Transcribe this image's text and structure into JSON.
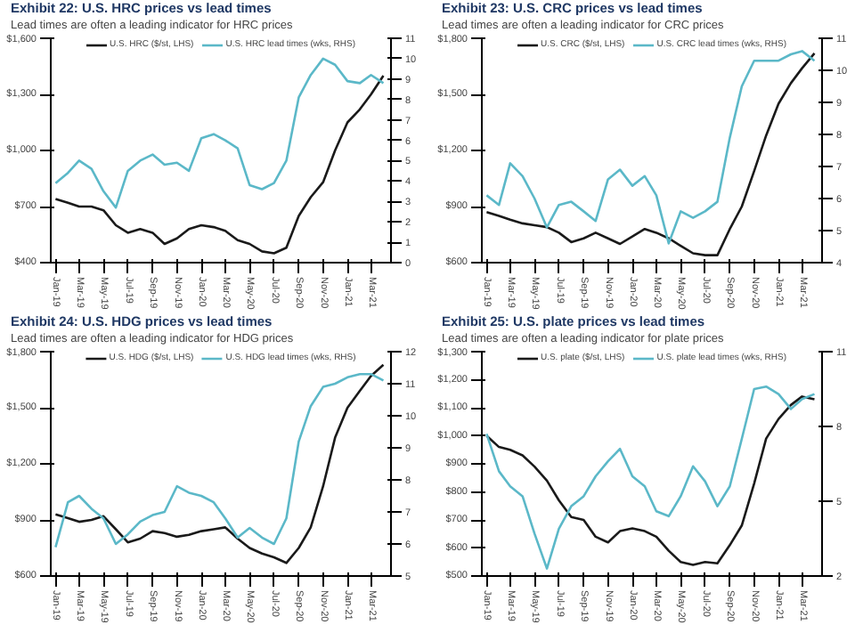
{
  "chart_data": [
    {
      "type": "line",
      "title": "Exhibit 22: U.S. HRC prices vs lead times",
      "subtitle": "Lead times are often a leading indicator for HRC prices",
      "legend": "top",
      "marker": "none",
      "line_style": "solid",
      "grid": false,
      "x": [
        "2019-01",
        "2019-02",
        "2019-03",
        "2019-04",
        "2019-05",
        "2019-06",
        "2019-07",
        "2019-08",
        "2019-09",
        "2019-10",
        "2019-11",
        "2019-12",
        "2020-01",
        "2020-02",
        "2020-03",
        "2020-04",
        "2020-05",
        "2020-06",
        "2020-07",
        "2020-08",
        "2020-09",
        "2020-10",
        "2020-11",
        "2020-12",
        "2021-01",
        "2021-02",
        "2021-03",
        "2021-04"
      ],
      "xlim": [
        "2018-12-20",
        "2021-04-20"
      ],
      "xticks": [
        {
          "value": "2019-01",
          "label": "Jan-19"
        },
        {
          "value": "2019-03",
          "label": "Mar-19"
        },
        {
          "value": "2019-05",
          "label": "May-19"
        },
        {
          "value": "2019-07",
          "label": "Jul-19"
        },
        {
          "value": "2019-09",
          "label": "Sep-19"
        },
        {
          "value": "2019-11",
          "label": "Nov-19"
        },
        {
          "value": "2020-01",
          "label": "Jan-20"
        },
        {
          "value": "2020-03",
          "label": "Mar-20"
        },
        {
          "value": "2020-05",
          "label": "May-20"
        },
        {
          "value": "2020-07",
          "label": "Jul-20"
        },
        {
          "value": "2020-09",
          "label": "Sep-20"
        },
        {
          "value": "2020-11",
          "label": "Nov-20"
        },
        {
          "value": "2021-01",
          "label": "Jan-21"
        },
        {
          "value": "2021-03",
          "label": "Mar-21"
        }
      ],
      "ylim": [
        400,
        1600
      ],
      "yticks": [
        {
          "value": 400,
          "label": "$400"
        },
        {
          "value": 700,
          "label": "$700"
        },
        {
          "value": 1000,
          "label": "$1,000"
        },
        {
          "value": 1300,
          "label": "$1,300"
        },
        {
          "value": 1600,
          "label": "$1,600"
        }
      ],
      "y2lim": [
        0,
        11
      ],
      "y2ticks": [
        0,
        1,
        2,
        3,
        4,
        5,
        6,
        7,
        8,
        9,
        10,
        11
      ],
      "series": [
        {
          "name": "U.S. HRC ($/st, LHS)",
          "color": "#1a1a1a",
          "values": [
            740,
            720,
            700,
            700,
            680,
            600,
            560,
            580,
            560,
            500,
            530,
            580,
            600,
            590,
            570,
            520,
            500,
            460,
            450,
            480,
            650,
            750,
            830,
            1000,
            1150,
            1220,
            1300,
            1400
          ]
        },
        {
          "name": "U.S. HRC lead times (wks, RHS)",
          "color": "#5bb8c8",
          "axis": "y2",
          "values": [
            3.9,
            4.4,
            5,
            4.6,
            3.5,
            2.7,
            4.5,
            5,
            5.3,
            4.8,
            4.9,
            4.5,
            6.1,
            6.3,
            6,
            5.6,
            3.8,
            3.6,
            3.9,
            5,
            8.1,
            9.2,
            10,
            9.7,
            8.9,
            8.8,
            9.2,
            8.8
          ]
        }
      ]
    },
    {
      "type": "line",
      "title": "Exhibit 23: U.S. CRC prices vs lead times",
      "subtitle": "Lead times are often a leading indicator for CRC prices",
      "legend": "top",
      "marker": "none",
      "line_style": "solid",
      "grid": false,
      "x": [
        "2019-01",
        "2019-02",
        "2019-03",
        "2019-04",
        "2019-05",
        "2019-06",
        "2019-07",
        "2019-08",
        "2019-09",
        "2019-10",
        "2019-11",
        "2019-12",
        "2020-01",
        "2020-02",
        "2020-03",
        "2020-04",
        "2020-05",
        "2020-06",
        "2020-07",
        "2020-08",
        "2020-09",
        "2020-10",
        "2020-11",
        "2020-12",
        "2021-01",
        "2021-02",
        "2021-03",
        "2021-04"
      ],
      "xlim": [
        "2018-12-20",
        "2021-04-20"
      ],
      "xticks": [
        {
          "value": "2019-01",
          "label": "Jan-19"
        },
        {
          "value": "2019-03",
          "label": "Mar-19"
        },
        {
          "value": "2019-05",
          "label": "May-19"
        },
        {
          "value": "2019-07",
          "label": "Jul-19"
        },
        {
          "value": "2019-09",
          "label": "Sep-19"
        },
        {
          "value": "2019-11",
          "label": "Nov-19"
        },
        {
          "value": "2020-01",
          "label": "Jan-20"
        },
        {
          "value": "2020-03",
          "label": "Mar-20"
        },
        {
          "value": "2020-05",
          "label": "May-20"
        },
        {
          "value": "2020-07",
          "label": "Jul-20"
        },
        {
          "value": "2020-09",
          "label": "Sep-20"
        },
        {
          "value": "2020-11",
          "label": "Nov-20"
        },
        {
          "value": "2021-01",
          "label": "Jan-21"
        },
        {
          "value": "2021-03",
          "label": "Mar-21"
        }
      ],
      "ylim": [
        600,
        1800
      ],
      "yticks": [
        {
          "value": 600,
          "label": "$600"
        },
        {
          "value": 900,
          "label": "$900"
        },
        {
          "value": 1200,
          "label": "$1,200"
        },
        {
          "value": 1500,
          "label": "$1,500"
        },
        {
          "value": 1800,
          "label": "$1,800"
        }
      ],
      "y2lim": [
        4,
        11
      ],
      "y2ticks": [
        4,
        5,
        6,
        7,
        8,
        9,
        10,
        11
      ],
      "series": [
        {
          "name": "U.S. CRC ($/st, LHS)",
          "color": "#1a1a1a",
          "values": [
            870,
            850,
            830,
            810,
            800,
            790,
            760,
            710,
            730,
            760,
            730,
            700,
            740,
            780,
            760,
            730,
            690,
            650,
            640,
            640,
            780,
            900,
            1090,
            1280,
            1450,
            1560,
            1640,
            1720
          ]
        },
        {
          "name": "U.S. CRC lead times (wks, RHS)",
          "color": "#5bb8c8",
          "axis": "y2",
          "values": [
            6.1,
            5.8,
            7.1,
            6.7,
            6,
            5.1,
            5.8,
            5.9,
            5.6,
            5.3,
            6.6,
            6.9,
            6.4,
            6.7,
            6.1,
            4.6,
            5.6,
            5.4,
            5.6,
            5.9,
            7.9,
            9.5,
            10.3,
            10.3,
            10.3,
            10.5,
            10.6,
            10.3
          ]
        }
      ]
    },
    {
      "type": "line",
      "title": "Exhibit 24: U.S. HDG prices vs lead times",
      "subtitle": "Lead times are often a leading indicator for HDG prices",
      "legend": "top",
      "marker": "none",
      "line_style": "solid",
      "grid": false,
      "x": [
        "2019-01",
        "2019-02",
        "2019-03",
        "2019-04",
        "2019-05",
        "2019-06",
        "2019-07",
        "2019-08",
        "2019-09",
        "2019-10",
        "2019-11",
        "2019-12",
        "2020-01",
        "2020-02",
        "2020-03",
        "2020-04",
        "2020-05",
        "2020-06",
        "2020-07",
        "2020-08",
        "2020-09",
        "2020-10",
        "2020-11",
        "2020-12",
        "2021-01",
        "2021-02",
        "2021-03",
        "2021-04"
      ],
      "xlim": [
        "2018-12-20",
        "2021-04-20"
      ],
      "xticks": [
        {
          "value": "2019-01",
          "label": "Jan-19"
        },
        {
          "value": "2019-03",
          "label": "Mar-19"
        },
        {
          "value": "2019-05",
          "label": "May-19"
        },
        {
          "value": "2019-07",
          "label": "Jul-19"
        },
        {
          "value": "2019-09",
          "label": "Sep-19"
        },
        {
          "value": "2019-11",
          "label": "Nov-19"
        },
        {
          "value": "2020-01",
          "label": "Jan-20"
        },
        {
          "value": "2020-03",
          "label": "Mar-20"
        },
        {
          "value": "2020-05",
          "label": "May-20"
        },
        {
          "value": "2020-07",
          "label": "Jul-20"
        },
        {
          "value": "2020-09",
          "label": "Sep-20"
        },
        {
          "value": "2020-11",
          "label": "Nov-20"
        },
        {
          "value": "2021-01",
          "label": "Jan-21"
        },
        {
          "value": "2021-03",
          "label": "Mar-21"
        }
      ],
      "ylim": [
        600,
        1800
      ],
      "yticks": [
        {
          "value": 600,
          "label": "$600"
        },
        {
          "value": 900,
          "label": "$900"
        },
        {
          "value": 1200,
          "label": "$1,200"
        },
        {
          "value": 1500,
          "label": "$1,500"
        },
        {
          "value": 1800,
          "label": "$1,800"
        }
      ],
      "y2lim": [
        5,
        12
      ],
      "y2ticks": [
        5,
        6,
        7,
        8,
        9,
        10,
        11,
        12
      ],
      "series": [
        {
          "name": "U.S. HDG ($/st, LHS)",
          "color": "#1a1a1a",
          "values": [
            930,
            910,
            890,
            900,
            920,
            850,
            780,
            800,
            840,
            830,
            810,
            820,
            840,
            850,
            860,
            800,
            750,
            720,
            700,
            670,
            750,
            860,
            1080,
            1340,
            1500,
            1590,
            1670,
            1730
          ]
        },
        {
          "name": "U.S. HDG lead times (wks, RHS)",
          "color": "#5bb8c8",
          "axis": "y2",
          "values": [
            5.9,
            7.3,
            7.5,
            7.1,
            6.8,
            6,
            6.3,
            6.7,
            6.9,
            7,
            7.8,
            7.6,
            7.5,
            7.3,
            6.8,
            6.2,
            6.5,
            6.2,
            6,
            6.8,
            9.2,
            10.3,
            10.9,
            11,
            11.2,
            11.3,
            11.3,
            11.1
          ]
        }
      ]
    },
    {
      "type": "line",
      "title": "Exhibit 25: U.S. plate prices vs lead times",
      "subtitle": "Lead times are often a leading indicator for plate prices",
      "legend": "top",
      "marker": "none",
      "line_style": "solid",
      "grid": false,
      "x": [
        "2019-01",
        "2019-02",
        "2019-03",
        "2019-04",
        "2019-05",
        "2019-06",
        "2019-07",
        "2019-08",
        "2019-09",
        "2019-10",
        "2019-11",
        "2019-12",
        "2020-01",
        "2020-02",
        "2020-03",
        "2020-04",
        "2020-05",
        "2020-06",
        "2020-07",
        "2020-08",
        "2020-09",
        "2020-10",
        "2020-11",
        "2020-12",
        "2021-01",
        "2021-02",
        "2021-03",
        "2021-04"
      ],
      "xlim": [
        "2018-12-20",
        "2021-04-20"
      ],
      "xticks": [
        {
          "value": "2019-01",
          "label": "Jan-19"
        },
        {
          "value": "2019-03",
          "label": "Mar-19"
        },
        {
          "value": "2019-05",
          "label": "May-19"
        },
        {
          "value": "2019-07",
          "label": "Jul-19"
        },
        {
          "value": "2019-09",
          "label": "Sep-19"
        },
        {
          "value": "2019-11",
          "label": "Nov-19"
        },
        {
          "value": "2020-01",
          "label": "Jan-20"
        },
        {
          "value": "2020-03",
          "label": "Mar-20"
        },
        {
          "value": "2020-05",
          "label": "May-20"
        },
        {
          "value": "2020-07",
          "label": "Jul-20"
        },
        {
          "value": "2020-09",
          "label": "Sep-20"
        },
        {
          "value": "2020-11",
          "label": "Nov-20"
        },
        {
          "value": "2021-01",
          "label": "Jan-21"
        },
        {
          "value": "2021-03",
          "label": "Mar-21"
        }
      ],
      "ylim": [
        500,
        1300
      ],
      "yticks": [
        {
          "value": 500,
          "label": "$500"
        },
        {
          "value": 600,
          "label": "$600"
        },
        {
          "value": 700,
          "label": "$700"
        },
        {
          "value": 800,
          "label": "$800"
        },
        {
          "value": 900,
          "label": "$900"
        },
        {
          "value": 1000,
          "label": "$1,000"
        },
        {
          "value": 1100,
          "label": "$1,100"
        },
        {
          "value": 1200,
          "label": "$1,200"
        },
        {
          "value": 1300,
          "label": "$1,300"
        }
      ],
      "y2lim": [
        2,
        11
      ],
      "y2ticks": [
        2,
        5,
        8,
        11
      ],
      "series": [
        {
          "name": "U.S. plate ($/st, LHS)",
          "color": "#1a1a1a",
          "values": [
            1000,
            960,
            950,
            930,
            890,
            840,
            770,
            710,
            700,
            640,
            620,
            660,
            670,
            660,
            640,
            590,
            550,
            540,
            550,
            545,
            610,
            680,
            830,
            990,
            1060,
            1110,
            1140,
            1130
          ]
        },
        {
          "name": "U.S. plate lead times (wks, RHS)",
          "color": "#5bb8c8",
          "axis": "y2",
          "values": [
            7.7,
            6.2,
            5.6,
            5.2,
            3.7,
            2.3,
            3.9,
            4.8,
            5.2,
            6,
            6.6,
            7.1,
            6,
            5.6,
            4.6,
            4.4,
            5.2,
            6.4,
            5.8,
            4.8,
            5.6,
            7.5,
            9.5,
            9.6,
            9.3,
            8.7,
            9.1,
            9.3
          ]
        }
      ]
    }
  ]
}
